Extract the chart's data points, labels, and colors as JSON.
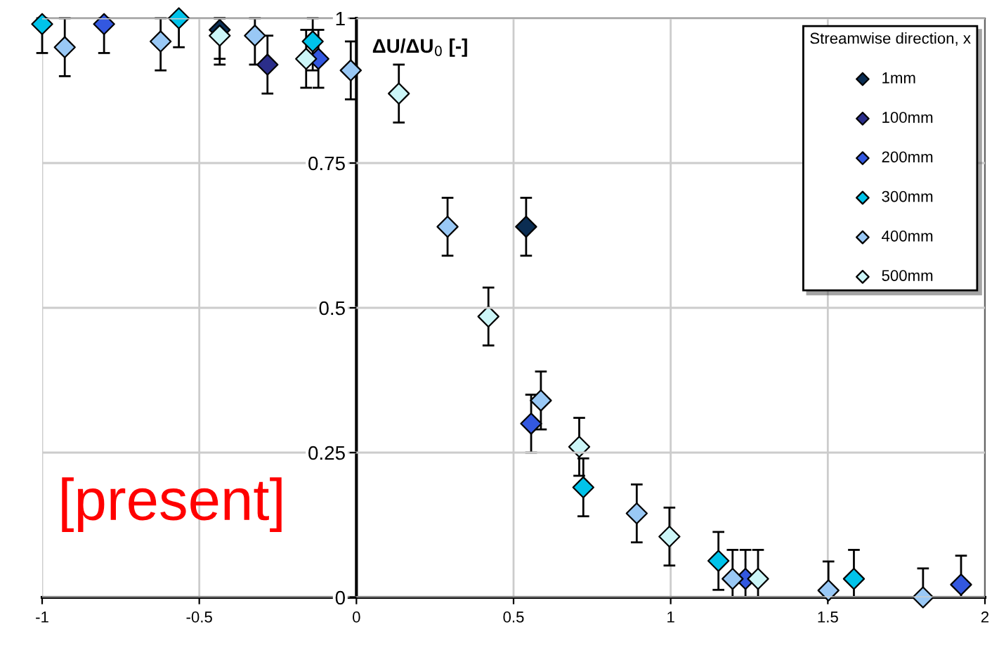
{
  "chart_data": {
    "type": "scatter",
    "ylabel": "ΔU/ΔU$_{0}$ [-]",
    "legend_title": "Streamwise direction, x",
    "annotations": [
      "[present]"
    ],
    "xlim": [
      -1,
      2
    ],
    "ylim": [
      0,
      1
    ],
    "xticks": [
      -1,
      -0.5,
      0,
      0.5,
      1,
      1.5,
      2
    ],
    "yticks": [
      0,
      0.25,
      0.5,
      0.75,
      1
    ],
    "grid": true,
    "legend": "top right",
    "marker": "diamond",
    "series": [
      {
        "name": "1mm",
        "color": "#0b2d52",
        "x": [
          -0.435,
          0.54
        ],
        "values": [
          0.98,
          0.64
        ],
        "errors": [
          [
            0.93,
            1
          ],
          0.05
        ]
      },
      {
        "name": "100mm",
        "color": "#2b2e8a",
        "x": [
          -0.283
        ],
        "values": [
          0.92
        ],
        "errors": [
          0.05
        ]
      },
      {
        "name": "200mm",
        "color": "#3358e0",
        "x": [
          -0.803,
          -0.121,
          0.556,
          1.238,
          1.924
        ],
        "values": [
          0.99,
          0.93,
          0.3,
          0.032,
          0.022
        ],
        "errors": [
          [
            0.94,
            1
          ],
          0.05,
          0.05,
          [
            0,
            0.082
          ],
          [
            0,
            0.072
          ]
        ]
      },
      {
        "name": "300mm",
        "color": "#00c3ea",
        "x": [
          -1.0,
          -0.565,
          -0.139,
          0.722,
          1.152,
          1.583
        ],
        "values": [
          0.99,
          1.0,
          0.96,
          0.19,
          0.063,
          0.032
        ],
        "errors": [
          [
            0.94,
            1
          ],
          [
            0.95,
            1
          ],
          [
            0.91,
            1
          ],
          0.05,
          0.05,
          [
            0,
            0.082
          ]
        ]
      },
      {
        "name": "400mm",
        "color": "#99c8f5",
        "x": [
          -0.928,
          -0.623,
          -0.323,
          -0.018,
          0.29,
          0.587,
          0.892,
          1.197,
          1.502,
          1.803
        ],
        "values": [
          0.95,
          0.96,
          0.97,
          0.91,
          0.64,
          0.34,
          0.145,
          0.032,
          0.012,
          0.0
        ],
        "errors": [
          [
            0.9,
            1
          ],
          [
            0.91,
            1
          ],
          [
            0.92,
            1
          ],
          0.05,
          0.05,
          0.05,
          0.05,
          [
            0,
            0.082
          ],
          [
            0,
            0.062
          ],
          [
            0,
            0.05
          ]
        ]
      },
      {
        "name": "500mm",
        "color": "#ccf6f8",
        "x": [
          -0.435,
          -0.16,
          0.135,
          0.42,
          0.709,
          0.996,
          1.278
        ],
        "values": [
          0.97,
          0.93,
          0.87,
          0.485,
          0.26,
          0.105,
          0.032
        ],
        "errors": [
          [
            0.92,
            1
          ],
          0.05,
          0.05,
          0.05,
          0.05,
          0.05,
          [
            0,
            0.082
          ]
        ]
      }
    ]
  }
}
